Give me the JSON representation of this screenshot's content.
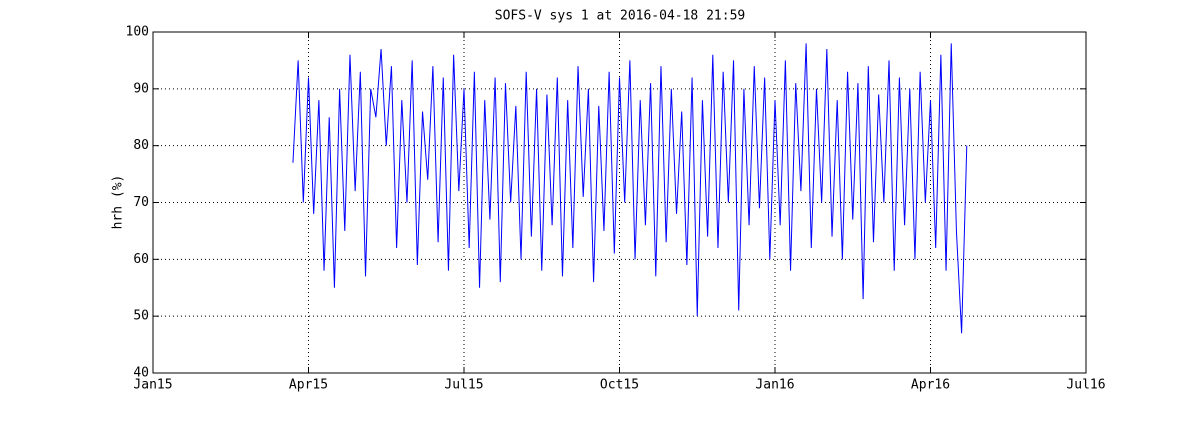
{
  "chart_data": {
    "type": "line",
    "title": "SOFS-V sys 1 at 2016-04-18 21:59",
    "y_label": "hrh (%)",
    "x": [
      2.7,
      2.8,
      2.9,
      3.0,
      3.1,
      3.2,
      3.3,
      3.4,
      3.5,
      3.6,
      3.7,
      3.8,
      3.9,
      4.0,
      4.1,
      4.2,
      4.3,
      4.4,
      4.5,
      4.6,
      4.7,
      4.8,
      4.9,
      5.0,
      5.1,
      5.2,
      5.3,
      5.4,
      5.5,
      5.6,
      5.7,
      5.8,
      5.9,
      6.0,
      6.1,
      6.2,
      6.3,
      6.4,
      6.5,
      6.6,
      6.7,
      6.8,
      6.9,
      7.0,
      7.1,
      7.2,
      7.3,
      7.4,
      7.5,
      7.6,
      7.7,
      7.8,
      7.9,
      8.0,
      8.1,
      8.2,
      8.3,
      8.4,
      8.5,
      8.6,
      8.7,
      8.8,
      8.9,
      9.0,
      9.1,
      9.2,
      9.3,
      9.4,
      9.5,
      9.6,
      9.7,
      9.8,
      9.9,
      10.0,
      10.1,
      10.2,
      10.3,
      10.4,
      10.5,
      10.6,
      10.7,
      10.8,
      10.9,
      11.0,
      11.1,
      11.2,
      11.3,
      11.4,
      11.5,
      11.6,
      11.7,
      11.8,
      11.9,
      12.0,
      12.1,
      12.2,
      12.3,
      12.4,
      12.5,
      12.6,
      12.7,
      12.8,
      12.9,
      13.0,
      13.1,
      13.2,
      13.3,
      13.4,
      13.5,
      13.6,
      13.7,
      13.8,
      13.9,
      14.0,
      14.1,
      14.2,
      14.3,
      14.4,
      14.5,
      14.6,
      14.7,
      14.8,
      14.9,
      15.0,
      15.1,
      15.2,
      15.3,
      15.4,
      15.5,
      15.6,
      15.7
    ],
    "series": [
      {
        "color": "#0000ff",
        "values": [
          77,
          95,
          70,
          92,
          68,
          88,
          58,
          85,
          55,
          90,
          65,
          96,
          72,
          93,
          57,
          90,
          85,
          97,
          80,
          94,
          62,
          88,
          70,
          95,
          59,
          86,
          74,
          94,
          63,
          92,
          58,
          96,
          72,
          90,
          62,
          93,
          55,
          88,
          67,
          92,
          56,
          91,
          70,
          87,
          60,
          93,
          64,
          90,
          58,
          89,
          66,
          92,
          57,
          88,
          62,
          94,
          71,
          90,
          56,
          87,
          65,
          93,
          61,
          92,
          70,
          95,
          60,
          88,
          66,
          91,
          57,
          94,
          63,
          90,
          68,
          86,
          59,
          92,
          50,
          88,
          64,
          96,
          62,
          93,
          70,
          95,
          51,
          90,
          66,
          94,
          69,
          92,
          60,
          88,
          66,
          95,
          58,
          91,
          72,
          98,
          62,
          90,
          70,
          97,
          64,
          88,
          60,
          93,
          67,
          91,
          53,
          94,
          63,
          89,
          70,
          95,
          58,
          92,
          66,
          90,
          60,
          93,
          70,
          88,
          62,
          96,
          58,
          98,
          65,
          47,
          80
        ]
      }
    ],
    "xlim": [
      0,
      18
    ],
    "xticks": [
      {
        "value": 0,
        "label": "Jan15"
      },
      {
        "value": 3,
        "label": "Apr15"
      },
      {
        "value": 6,
        "label": "Jul15"
      },
      {
        "value": 9,
        "label": "Oct15"
      },
      {
        "value": 12,
        "label": "Jan16"
      },
      {
        "value": 15,
        "label": "Apr16"
      },
      {
        "value": 18,
        "label": "Jul16"
      }
    ],
    "ylim": [
      40,
      100
    ],
    "yticks": [
      40,
      50,
      60,
      70,
      80,
      90,
      100
    ],
    "grid": true
  }
}
